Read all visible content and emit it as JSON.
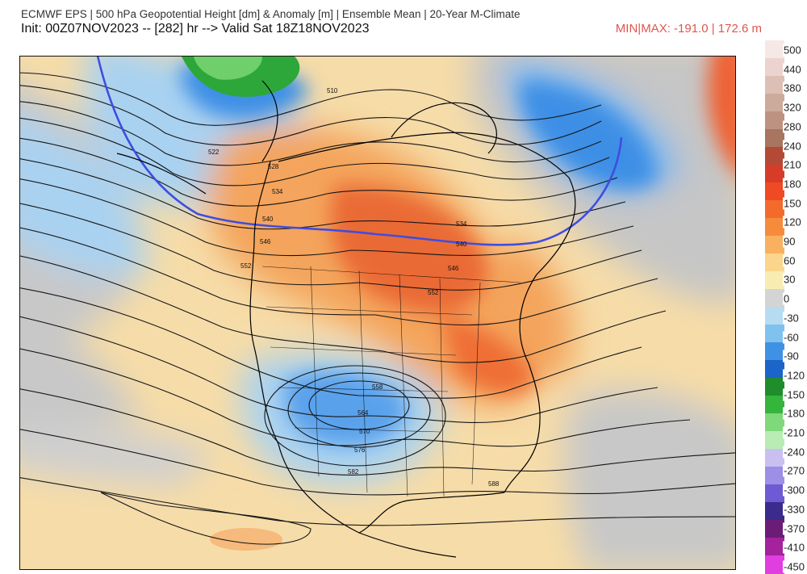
{
  "header": {
    "line1": "ECMWF EPS | 500 hPa Geopotential Height [dm] & Anomaly [m] | Ensemble Mean | 20-Year M-Climate",
    "line2": "Init: 00Z07NOV2023 -- [282] hr --> Valid Sat 18Z18NOV2023",
    "minmax": "MIN|MAX: -191.0 | 172.6 m"
  },
  "map": {
    "contour_labels": [
      "510",
      "522",
      "528",
      "534",
      "540",
      "546",
      "552",
      "558",
      "564",
      "570",
      "576",
      "582",
      "588",
      "534",
      "540",
      "546",
      "552"
    ],
    "highlight_contour": "540",
    "anomaly_features": [
      {
        "name": "ridge",
        "sign": "positive",
        "color": "#e2652e"
      },
      {
        "name": "trough",
        "sign": "negative",
        "color": "#5c9ce8"
      }
    ]
  },
  "colorbar": {
    "labels": [
      "500",
      "440",
      "380",
      "320",
      "280",
      "240",
      "210",
      "180",
      "150",
      "120",
      "90",
      "60",
      "30",
      "0",
      "-30",
      "-60",
      "-90",
      "-120",
      "-150",
      "-180",
      "-210",
      "-240",
      "-270",
      "-300",
      "-330",
      "-370",
      "-410",
      "-450"
    ],
    "colors": [
      "#f6e8e6",
      "#ecd3cf",
      "#ddbfb6",
      "#ceaa9c",
      "#be9281",
      "#a87560",
      "#b34a36",
      "#d63c28",
      "#ef4a23",
      "#f36b2b",
      "#f68b3c",
      "#f9b05f",
      "#fbd58b",
      "#f8ecb3",
      "#d4d4d4",
      "#b6dcf2",
      "#7fc2ee",
      "#3f92e3",
      "#1b64c8",
      "#1f8d2c",
      "#34b53b",
      "#7fd87a",
      "#b8ecb3",
      "#c9c0f1",
      "#9d8fe6",
      "#6e5bd3",
      "#3a2b8c",
      "#6b1c76",
      "#a4229c",
      "#e13ee0"
    ]
  }
}
